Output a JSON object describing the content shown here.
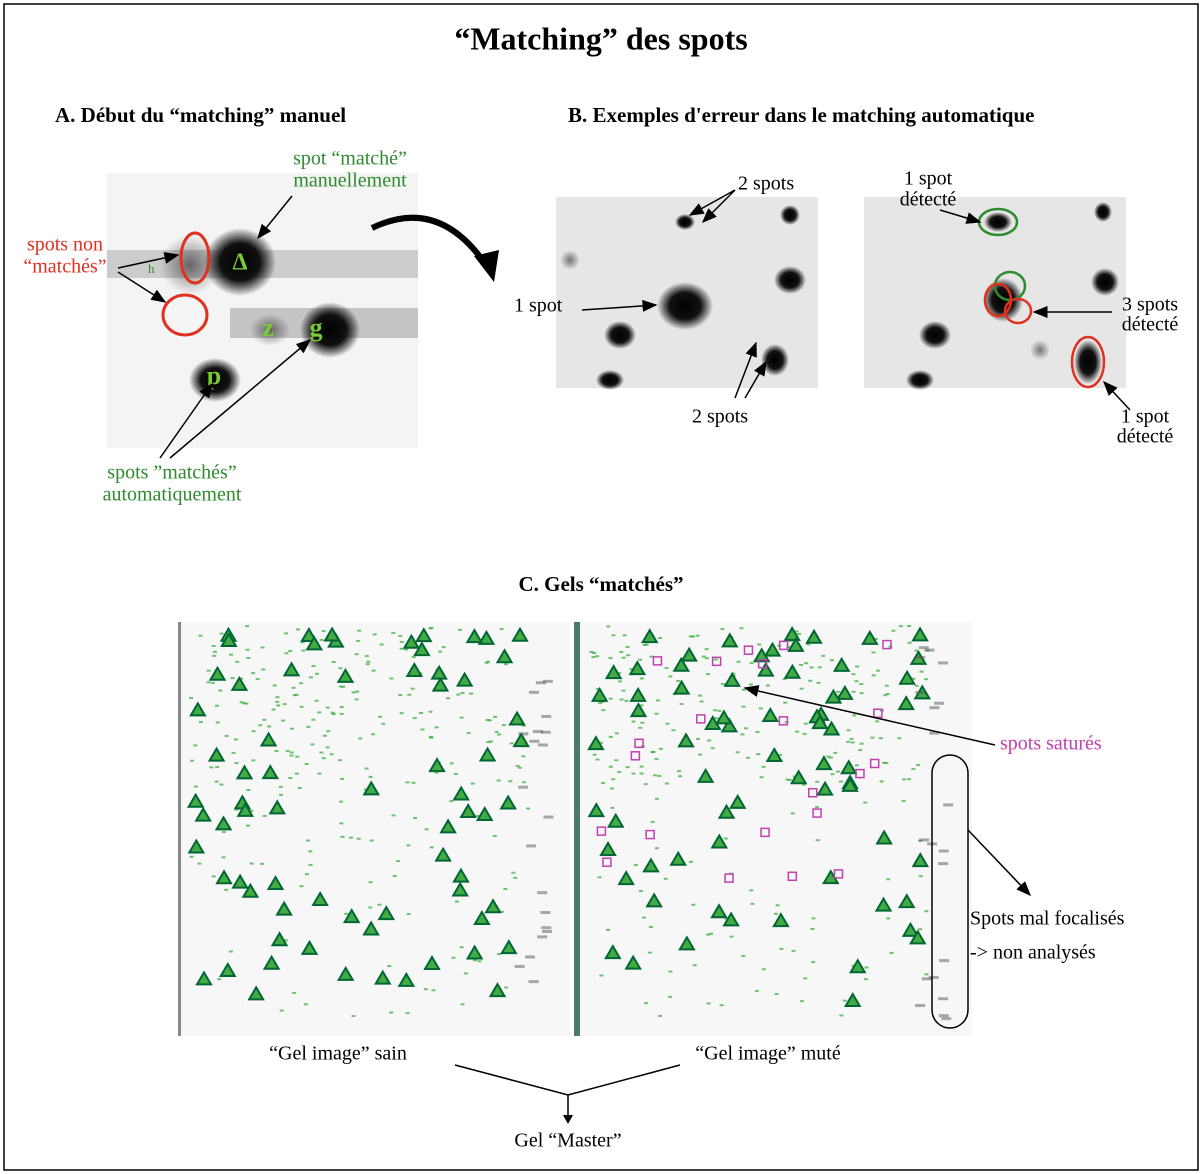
{
  "title": "“Matching” des spots",
  "section_a": {
    "title": "A. Début du “matching” manuel",
    "manual_label": [
      "spot “matché”",
      "manuellement"
    ],
    "unmatched_label": [
      "spots non",
      "“matchés”"
    ],
    "auto_label": [
      "spots ”matchés”",
      "automatiquement"
    ],
    "gel_letters": [
      "h",
      "Δ",
      "z",
      "g",
      "p"
    ]
  },
  "section_b": {
    "title": "B. Exemples d'erreur dans le matching automatique",
    "left_labels": [
      "2 spots",
      "1 spot",
      "2 spots"
    ],
    "right_labels": [
      [
        "1 spot",
        "détecté"
      ],
      [
        "3 spots",
        "détecté"
      ],
      [
        "1 spot",
        "détecté"
      ]
    ]
  },
  "section_c": {
    "title": "C. Gels “matchés”",
    "saturated_label": "spots saturés",
    "unfocused_label": [
      "Spots mal focalisés",
      "-> non analysés"
    ],
    "gel_sain": "“Gel image” sain",
    "gel_mute": "“Gel image” muté",
    "master": "Gel “Master”"
  }
}
